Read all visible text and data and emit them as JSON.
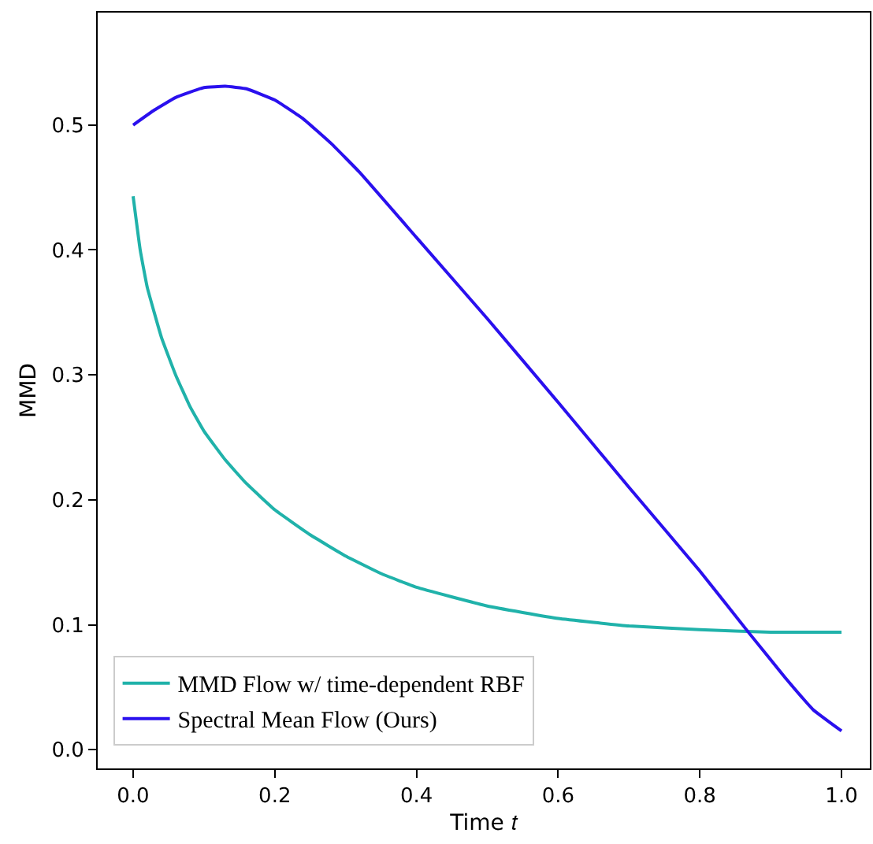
{
  "chart_data": {
    "type": "line",
    "xlabel": "Time 𝑡",
    "ylabel": "MMD",
    "xlim": [
      -0.05,
      1.04
    ],
    "ylim": [
      -0.015,
      0.59
    ],
    "xticks": [
      {
        "value": 0,
        "label": "0.0"
      },
      0.2,
      0.4,
      0.6,
      0.8,
      {
        "value": 1,
        "label": "1.0"
      }
    ],
    "yticks": [
      {
        "value": 0,
        "label": "0.0"
      },
      0.1,
      0.2,
      0.3,
      0.4,
      0.5
    ],
    "legend": "bottom left",
    "marker": "none",
    "line_style": "solid",
    "series": [
      {
        "name": "MMD Flow w/ time-dependent RBF",
        "color": "#20b2aa",
        "x": [
          0,
          0.01,
          0.02,
          0.04,
          0.06,
          0.08,
          0.1,
          0.13,
          0.16,
          0.2,
          0.25,
          0.3,
          0.35,
          0.4,
          0.5,
          0.6,
          0.7,
          0.8,
          0.9,
          1.0
        ],
        "values": [
          0.443,
          0.4,
          0.37,
          0.33,
          0.3,
          0.275,
          0.255,
          0.232,
          0.213,
          0.192,
          0.172,
          0.155,
          0.141,
          0.13,
          0.115,
          0.105,
          0.099,
          0.096,
          0.094,
          0.094
        ]
      },
      {
        "name": "Spectral Mean Flow (Ours)",
        "color": "#2a10ee",
        "x": [
          0,
          0.03,
          0.06,
          0.1,
          0.13,
          0.16,
          0.2,
          0.24,
          0.28,
          0.32,
          0.4,
          0.5,
          0.6,
          0.7,
          0.8,
          0.87,
          0.92,
          0.96,
          1.0
        ],
        "values": [
          0.5,
          0.512,
          0.522,
          0.53,
          0.531,
          0.529,
          0.52,
          0.505,
          0.485,
          0.462,
          0.41,
          0.345,
          0.278,
          0.21,
          0.143,
          0.093,
          0.058,
          0.032,
          0.015
        ]
      }
    ]
  }
}
